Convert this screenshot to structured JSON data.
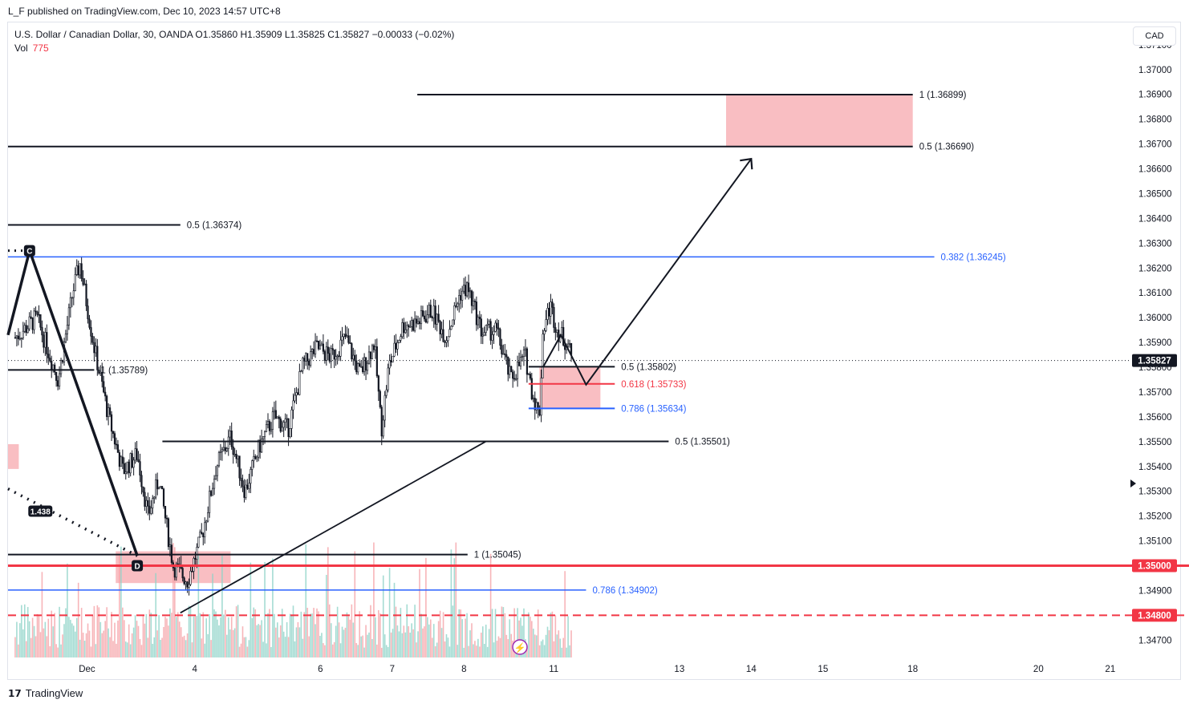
{
  "header": {
    "published": "L_F published on TradingView.com, Dec 10, 2023 14:57 UTC+8",
    "legend_line": "U.S. Dollar / Canadian Dollar, 30, OANDA  O1.35860  H1.35909  L1.35825  C1.35827  −0.00033 (−0.02%)",
    "vol_label": "Vol",
    "vol_value": "775",
    "currency": "CAD"
  },
  "footer": {
    "brand": "TradingView"
  },
  "chart_data": {
    "type": "candlestick",
    "symbol": "USDCAD",
    "interval": "30",
    "ylim": [
      1.3463,
      1.3719
    ],
    "y_ticks": [
      "1.37100",
      "1.37000",
      "1.36900",
      "1.36800",
      "1.36700",
      "1.36600",
      "1.36500",
      "1.36400",
      "1.36300",
      "1.36200",
      "1.36100",
      "1.36000",
      "1.35900",
      "1.35800",
      "1.35700",
      "1.35600",
      "1.35500",
      "1.35400",
      "1.35300",
      "1.35200",
      "1.35100",
      "1.35000",
      "1.34900",
      "1.34800",
      "1.34700"
    ],
    "x_ticks": [
      {
        "label": "Dec",
        "t": 1
      },
      {
        "label": "4",
        "t": 2.5
      },
      {
        "label": "6",
        "t": 4.25
      },
      {
        "label": "7",
        "t": 5.25
      },
      {
        "label": "8",
        "t": 6.25
      },
      {
        "label": "11",
        "t": 7.5
      },
      {
        "label": "13",
        "t": 9.25
      },
      {
        "label": "14",
        "t": 10.25
      },
      {
        "label": "15",
        "t": 11.25
      },
      {
        "label": "18",
        "t": 12.5
      },
      {
        "label": "20",
        "t": 14.25
      },
      {
        "label": "21",
        "t": 15.25
      }
    ],
    "price_path": [
      [
        0.0,
        1.3592
      ],
      [
        0.3,
        1.36
      ],
      [
        0.6,
        1.3575
      ],
      [
        0.8,
        1.361
      ],
      [
        0.9,
        1.3622
      ],
      [
        1.1,
        1.3588
      ],
      [
        1.3,
        1.356
      ],
      [
        1.5,
        1.3538
      ],
      [
        1.7,
        1.3545
      ],
      [
        1.85,
        1.352
      ],
      [
        2.0,
        1.3535
      ],
      [
        2.2,
        1.35
      ],
      [
        2.4,
        1.3494
      ],
      [
        2.6,
        1.3512
      ],
      [
        2.8,
        1.354
      ],
      [
        3.0,
        1.3552
      ],
      [
        3.2,
        1.353
      ],
      [
        3.4,
        1.3548
      ],
      [
        3.6,
        1.356
      ],
      [
        3.8,
        1.3555
      ],
      [
        4.0,
        1.358
      ],
      [
        4.2,
        1.3588
      ],
      [
        4.4,
        1.3584
      ],
      [
        4.6,
        1.3592
      ],
      [
        4.8,
        1.3577
      ],
      [
        5.0,
        1.359
      ],
      [
        5.1,
        1.3555
      ],
      [
        5.2,
        1.358
      ],
      [
        5.4,
        1.3597
      ],
      [
        5.6,
        1.3598
      ],
      [
        5.8,
        1.3603
      ],
      [
        6.0,
        1.3592
      ],
      [
        6.2,
        1.361
      ],
      [
        6.3,
        1.3612
      ],
      [
        6.5,
        1.3594
      ],
      [
        6.7,
        1.3595
      ],
      [
        6.9,
        1.3575
      ],
      [
        7.1,
        1.3585
      ],
      [
        7.2,
        1.357
      ],
      [
        7.3,
        1.356
      ],
      [
        7.35,
        1.3595
      ],
      [
        7.45,
        1.3605
      ],
      [
        7.55,
        1.3595
      ],
      [
        7.7,
        1.3589
      ],
      [
        7.75,
        1.3583
      ]
    ],
    "last_price": "1.35827",
    "price_labels": [
      {
        "text": "1.35827",
        "price": 1.35827,
        "color": "#131722"
      },
      {
        "text": "1.35000",
        "price": 1.35,
        "color": "#f23645"
      },
      {
        "text": "1.34800",
        "price": 1.348,
        "color": "#f23645"
      }
    ],
    "levels": [
      {
        "label": "1 (1.36899)",
        "price": 1.36899,
        "t1": 5.6,
        "t2": 12.5,
        "color": "#131722",
        "w": 2,
        "dash": ""
      },
      {
        "label": "0.5 (1.36690)",
        "price": 1.3669,
        "t1": -0.1,
        "t2": 12.5,
        "color": "#131722",
        "w": 2,
        "dash": ""
      },
      {
        "label": "0.5 (1.36374)",
        "price": 1.36374,
        "t1": -0.1,
        "t2": 2.3,
        "color": "#131722",
        "w": 2,
        "dash": ""
      },
      {
        "label": "0.382 (1.36245)",
        "price": 1.36245,
        "t1": -0.1,
        "t2": 12.8,
        "color": "#2962ff",
        "w": 1.5,
        "dash": ""
      },
      {
        "label": "1 (1.35789)",
        "price": 1.35789,
        "t1": -0.1,
        "t2": 1.1,
        "color": "#131722",
        "w": 2,
        "dash": ""
      },
      {
        "label": "0.5 (1.35802)",
        "price": 1.35802,
        "t1": 7.15,
        "t2": 8.35,
        "color": "#131722",
        "w": 2,
        "dash": ""
      },
      {
        "label": "0.618 (1.35733)",
        "price": 1.35733,
        "t1": 7.15,
        "t2": 8.35,
        "color": "#f23645",
        "w": 2,
        "dash": ""
      },
      {
        "label": "0.786 (1.35634)",
        "price": 1.35634,
        "t1": 7.15,
        "t2": 8.35,
        "color": "#2962ff",
        "w": 2,
        "dash": ""
      },
      {
        "label": "0.5 (1.35501)",
        "price": 1.35501,
        "t1": 2.05,
        "t2": 9.1,
        "color": "#131722",
        "w": 2,
        "dash": ""
      },
      {
        "label": "1 (1.35045)",
        "price": 1.35045,
        "t1": -0.1,
        "t2": 6.3,
        "color": "#131722",
        "w": 2,
        "dash": ""
      },
      {
        "label": "0.786 (1.34902)",
        "price": 1.34902,
        "t1": -0.1,
        "t2": 7.95,
        "color": "#2962ff",
        "w": 1.5,
        "dash": ""
      },
      {
        "label": "",
        "price": 1.35,
        "t1": -0.1,
        "t2": 16.4,
        "color": "#f23645",
        "w": 3,
        "dash": ""
      },
      {
        "label": "",
        "price": 1.348,
        "t1": -0.1,
        "t2": 16.4,
        "color": "#f23645",
        "w": 2,
        "dash": "10,6"
      }
    ],
    "zones": [
      {
        "t1": 9.9,
        "t2": 12.5,
        "p1": 1.36899,
        "p2": 1.3669
      },
      {
        "t1": 7.3,
        "t2": 8.15,
        "p1": 1.35802,
        "p2": 1.35634
      },
      {
        "t1": 1.4,
        "t2": 3.0,
        "p1": 1.35058,
        "p2": 1.3493
      },
      {
        "t1": -0.1,
        "t2": 0.05,
        "p1": 1.3549,
        "p2": 1.3539
      }
    ],
    "pattern_lines": [
      {
        "pts": [
          [
            -0.1,
            1.3593
          ],
          [
            0.2,
            1.3627
          ],
          [
            1.7,
            1.3504
          ]
        ],
        "w": 3.5,
        "dash": ""
      },
      {
        "pts": [
          [
            -0.1,
            1.3627
          ],
          [
            0.2,
            1.3627
          ]
        ],
        "w": 3,
        "dash": "2,6"
      },
      {
        "pts": [
          [
            -0.1,
            1.3531
          ],
          [
            1.7,
            1.3504
          ]
        ],
        "w": 3.5,
        "dash": "2,7"
      },
      {
        "pts": [
          [
            2.3,
            1.3481
          ],
          [
            6.55,
            1.355
          ]
        ],
        "w": 1.8,
        "dash": ""
      },
      {
        "pts": [
          [
            7.35,
            1.358
          ],
          [
            7.6,
            1.3593
          ],
          [
            7.95,
            1.3573
          ],
          [
            10.25,
            1.3664
          ]
        ],
        "w": 2,
        "dash": ""
      }
    ],
    "arrow_head": {
      "t": 10.25,
      "p": 1.3664
    },
    "wave_labels": [
      {
        "text": "C",
        "t": 0.2,
        "p": 1.3627,
        "dark": true
      },
      {
        "text": "D",
        "t": 1.7,
        "p": 1.35,
        "dark": true
      },
      {
        "text": "1.438",
        "t": 0.35,
        "p": 1.3522,
        "dark": true
      }
    ]
  }
}
